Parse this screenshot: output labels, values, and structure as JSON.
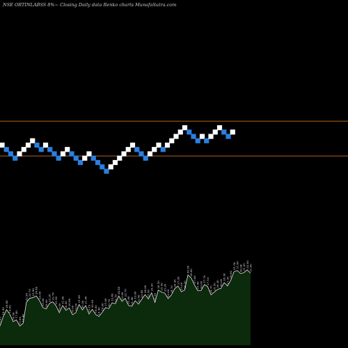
{
  "title": "NSE ORTINLABSS 8%~   Closing Daily data  Renko  charts MunafaSutra.com",
  "colors": {
    "background": "#000000",
    "up_brick": "#ffffff",
    "down_brick": "#2a7fe0",
    "level_line": "#b5651d",
    "volume_fill": "#0c2a0c",
    "volume_stroke": "#e8e8e8"
  },
  "chart_data": [
    {
      "type": "renko",
      "bricks": [
        {
          "dir": "up",
          "level": 4
        },
        {
          "dir": "down",
          "level": 3
        },
        {
          "dir": "down",
          "level": 2
        },
        {
          "dir": "down",
          "level": 1
        },
        {
          "dir": "up",
          "level": 2
        },
        {
          "dir": "up",
          "level": 3
        },
        {
          "dir": "up",
          "level": 4
        },
        {
          "dir": "up",
          "level": 5
        },
        {
          "dir": "down",
          "level": 4
        },
        {
          "dir": "down",
          "level": 3
        },
        {
          "dir": "up",
          "level": 4
        },
        {
          "dir": "down",
          "level": 3
        },
        {
          "dir": "down",
          "level": 2
        },
        {
          "dir": "down",
          "level": 1
        },
        {
          "dir": "up",
          "level": 2
        },
        {
          "dir": "up",
          "level": 3
        },
        {
          "dir": "down",
          "level": 2
        },
        {
          "dir": "down",
          "level": 1
        },
        {
          "dir": "down",
          "level": 0
        },
        {
          "dir": "up",
          "level": 1
        },
        {
          "dir": "up",
          "level": 2
        },
        {
          "dir": "down",
          "level": 1
        },
        {
          "dir": "down",
          "level": 0
        },
        {
          "dir": "down",
          "level": -1
        },
        {
          "dir": "down",
          "level": -2
        },
        {
          "dir": "up",
          "level": -1
        },
        {
          "dir": "up",
          "level": 0
        },
        {
          "dir": "up",
          "level": 1
        },
        {
          "dir": "up",
          "level": 2
        },
        {
          "dir": "up",
          "level": 3
        },
        {
          "dir": "up",
          "level": 4
        },
        {
          "dir": "down",
          "level": 3
        },
        {
          "dir": "down",
          "level": 2
        },
        {
          "dir": "down",
          "level": 1
        },
        {
          "dir": "up",
          "level": 2
        },
        {
          "dir": "up",
          "level": 3
        },
        {
          "dir": "up",
          "level": 4
        },
        {
          "dir": "down",
          "level": 3
        },
        {
          "dir": "up",
          "level": 4
        },
        {
          "dir": "up",
          "level": 5
        },
        {
          "dir": "up",
          "level": 6
        },
        {
          "dir": "up",
          "level": 7
        },
        {
          "dir": "up",
          "level": 8
        },
        {
          "dir": "down",
          "level": 7
        },
        {
          "dir": "down",
          "level": 6
        },
        {
          "dir": "down",
          "level": 5
        },
        {
          "dir": "up",
          "level": 6
        },
        {
          "dir": "down",
          "level": 5
        },
        {
          "dir": "up",
          "level": 6
        },
        {
          "dir": "up",
          "level": 7
        },
        {
          "dir": "up",
          "level": 8
        },
        {
          "dir": "down",
          "level": 7
        },
        {
          "dir": "down",
          "level": 6
        },
        {
          "dir": "up",
          "level": 7
        }
      ],
      "levels": [
        9.5,
        1.5
      ]
    },
    {
      "type": "area",
      "values": [
        15.6,
        18.4,
        20.4,
        19.0,
        16.9,
        17.4,
        15.6,
        16.4,
        22.5,
        23.7,
        23.9,
        24.4,
        23.0,
        21.0,
        20.6,
        22.2,
        22.7,
        21.5,
        19.5,
        21.6,
        20.2,
        20.9,
        18.9,
        19.5,
        21.9,
        20.3,
        21.6,
        19.1,
        20.5,
        19.0,
        18.4,
        19.6,
        21.0,
        20.7,
        22.4,
        22.1,
        24.4,
        22.8,
        23.7,
        21.6,
        21.4,
        23.0,
        22.0,
        23.4,
        24.8,
        23.5,
        25.3,
        22.5,
        26.1,
        25.5,
        25.2,
        23.6,
        24.7,
        26.5,
        27.3,
        25.6,
        26.1,
        30.5,
        29.6,
        27.6,
        25.9,
        26.0,
        27.7,
        27.1,
        24.7,
        25.5,
        26.3,
        26.6,
        28.3,
        27.3,
        29.0,
        31.5,
        31.8,
        30.9,
        31.2,
        32.0,
        31.0
      ],
      "labels": [
        "15.65",
        "18.45",
        "20.40",
        "19.00",
        "16.90",
        "17.40",
        "15.60",
        "16.40",
        "22.50",
        "23.70",
        "23.90",
        "24.40",
        "23.00",
        "21.00",
        "20.60",
        "22.20",
        "22.70",
        "21.50",
        "19.50",
        "21.60",
        "20.20",
        "20.90",
        "18.90",
        "19.50",
        "21.90",
        "20.30",
        "21.60",
        "19.10",
        "20.50",
        "19.00",
        "18.40",
        "19.60",
        "21.00",
        "20.70",
        "22.40",
        "22.10",
        "24.40",
        "22.80",
        "23.70",
        "21.60",
        "21.40",
        "23.00",
        "22.00",
        "23.40",
        "24.80",
        "23.50",
        "25.30",
        "22.50",
        "26.10",
        "25.50",
        "25.20",
        "23.60",
        "24.70",
        "26.50",
        "27.30",
        "25.60",
        "26.10",
        "30.50",
        "29.60",
        "27.60",
        "25.90",
        "26.00",
        "27.70",
        "27.10",
        "24.70",
        "25.50",
        "26.30",
        "26.60",
        "28.30",
        "27.30",
        "29.00",
        "31.50",
        "31.80",
        "30.90",
        "31.20",
        "32.00",
        "31.00"
      ]
    }
  ]
}
